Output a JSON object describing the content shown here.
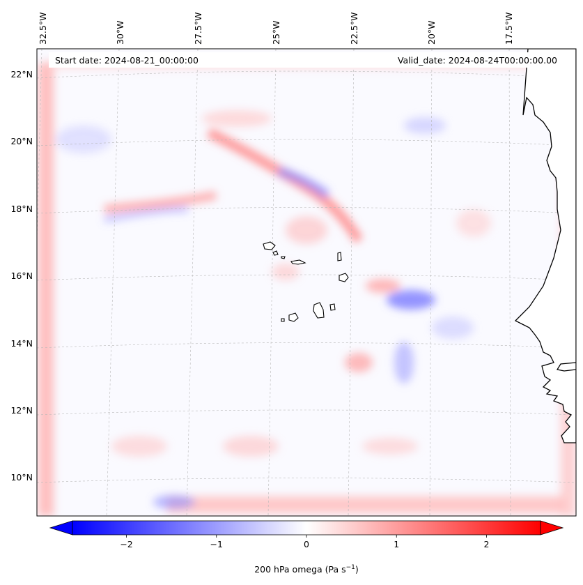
{
  "map": {
    "title_left": "Start date: 2024-08-21_00:00:00",
    "title_right": "Valid_date: 2024-08-24T00:00:00.00",
    "projection": "lambert-conformal",
    "region": "Cape Verde / West African coast",
    "lon_labels": [
      "32.5°W",
      "30°W",
      "27.5°W",
      "25°W",
      "22.5°W",
      "20°W",
      "17.5°W"
    ],
    "lat_labels": [
      "22°N",
      "20°N",
      "18°N",
      "16°N",
      "14°N",
      "12°N",
      "10°N"
    ],
    "field": "200 hPa omega",
    "colors": {
      "negative": "#0000ff",
      "neutral": "#ffffff",
      "positive": "#ff0000",
      "grid": "#b0b0b0",
      "coast": "#000000"
    }
  },
  "colorbar": {
    "label": "200 hPa omega (Pa s",
    "label_sup": "−1",
    "label_end": ")",
    "ticks": [
      "−2",
      "−1",
      "0",
      "1",
      "2"
    ],
    "tick_values": [
      -2,
      -1,
      0,
      1,
      2
    ],
    "vmin": -2.6,
    "vmax": 2.6,
    "extend": "both"
  }
}
